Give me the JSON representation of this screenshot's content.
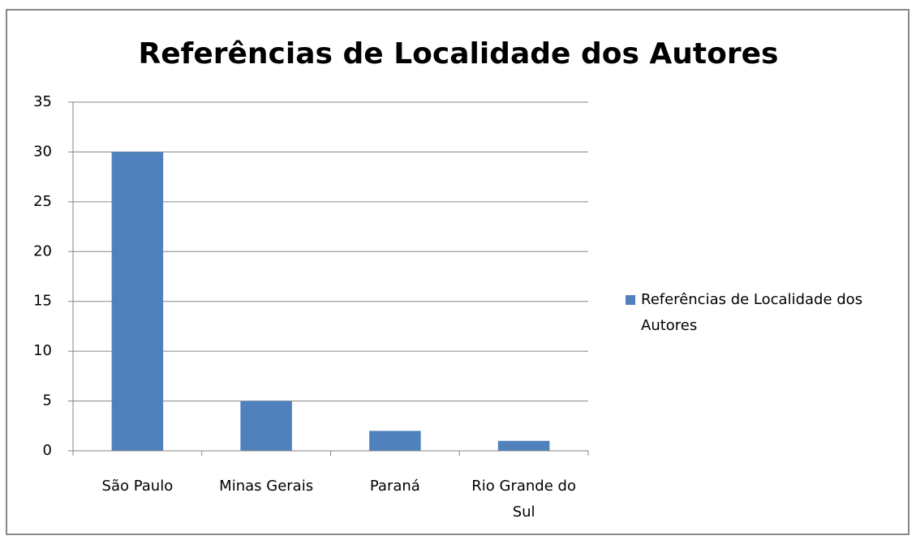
{
  "chart_data": {
    "type": "bar",
    "title": "Referências de Localidade dos Autores",
    "categories": [
      "São Paulo",
      "Minas Gerais",
      "Paraná",
      "Rio Grande do Sul"
    ],
    "series": [
      {
        "name": "Referências de Localidade dos Autores",
        "color": "#4f81bd",
        "values": [
          30,
          5,
          2,
          1
        ]
      }
    ],
    "ylim": [
      0,
      35
    ],
    "yticks": [
      0,
      5,
      10,
      15,
      20,
      25,
      30,
      35
    ],
    "grid": true,
    "legend": "right"
  }
}
